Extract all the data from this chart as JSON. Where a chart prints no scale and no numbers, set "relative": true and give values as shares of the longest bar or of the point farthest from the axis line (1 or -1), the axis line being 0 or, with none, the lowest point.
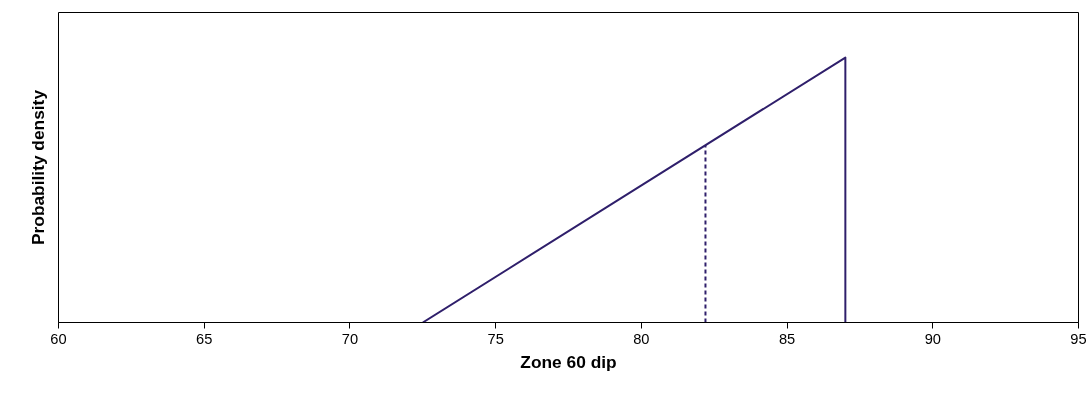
{
  "chart_data": {
    "type": "line",
    "xlabel": "Zone 60 dip",
    "ylabel": "Probability density",
    "relative": true,
    "xlim": [
      60,
      95
    ],
    "xticks": [
      60,
      65,
      70,
      75,
      80,
      85,
      90,
      95
    ],
    "grid": false,
    "marker": "none",
    "series": [
      {
        "color": "#2f1f6b",
        "x": [
          72.5,
          87,
          87
        ],
        "values": [
          0,
          1,
          0
        ],
        "line_style": "solid"
      },
      {
        "color": "#2f1f6b",
        "x": [
          82.2,
          82.2
        ],
        "values": [
          0,
          0.67
        ],
        "line_style": "dashed"
      }
    ]
  }
}
